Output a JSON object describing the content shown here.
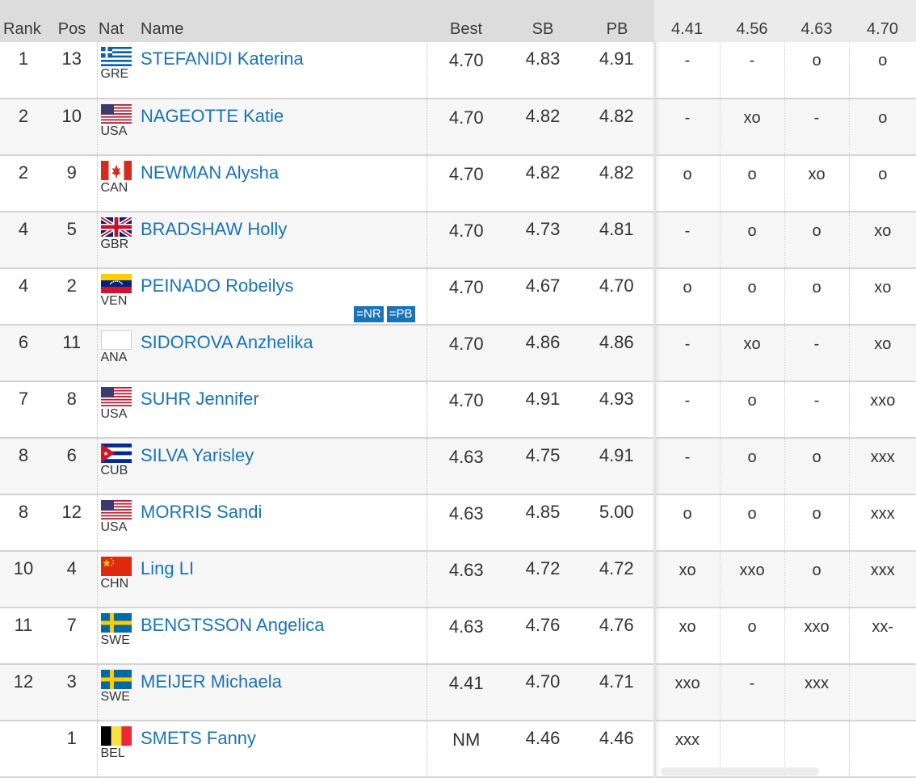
{
  "headers": {
    "rank": "Rank",
    "pos": "Pos",
    "nat": "Nat",
    "name": "Name",
    "best": "Best",
    "sb": "SB",
    "pb": "PB",
    "heights": [
      "4.41",
      "4.56",
      "4.63",
      "4.70"
    ]
  },
  "colors": {
    "link": "#1a73b8",
    "badge": "#1a73b8",
    "header_bg": "#dcdcdc",
    "height_header_bg": "#ebebeb",
    "row_alt_bg": "#f6f6f6"
  },
  "rows": [
    {
      "rank": "1",
      "pos": "13",
      "nat": "GRE",
      "flag": "flag-greece-icon",
      "name": "STEFANIDI Katerina",
      "best": "4.70",
      "sb": "4.83",
      "pb": "4.91",
      "attempts": [
        "-",
        "-",
        "o",
        "o"
      ],
      "badges": []
    },
    {
      "rank": "2",
      "pos": "10",
      "nat": "USA",
      "flag": "flag-usa-icon",
      "name": "NAGEOTTE Katie",
      "best": "4.70",
      "sb": "4.82",
      "pb": "4.82",
      "attempts": [
        "-",
        "xo",
        "-",
        "o"
      ],
      "badges": []
    },
    {
      "rank": "2",
      "pos": "9",
      "nat": "CAN",
      "flag": "flag-canada-icon",
      "name": "NEWMAN Alysha",
      "best": "4.70",
      "sb": "4.82",
      "pb": "4.82",
      "attempts": [
        "o",
        "o",
        "xo",
        "o"
      ],
      "badges": []
    },
    {
      "rank": "4",
      "pos": "5",
      "nat": "GBR",
      "flag": "flag-uk-icon",
      "name": "BRADSHAW Holly",
      "best": "4.70",
      "sb": "4.73",
      "pb": "4.81",
      "attempts": [
        "-",
        "o",
        "o",
        "xo"
      ],
      "badges": []
    },
    {
      "rank": "4",
      "pos": "2",
      "nat": "VEN",
      "flag": "flag-venezuela-icon",
      "name": "PEINADO Robeilys",
      "best": "4.70",
      "sb": "4.67",
      "pb": "4.70",
      "attempts": [
        "o",
        "o",
        "o",
        "xo"
      ],
      "badges": [
        "=NR",
        "=PB"
      ]
    },
    {
      "rank": "6",
      "pos": "11",
      "nat": "ANA",
      "flag": "flag-blank-icon",
      "name": "SIDOROVA Anzhelika",
      "best": "4.70",
      "sb": "4.86",
      "pb": "4.86",
      "attempts": [
        "-",
        "xo",
        "-",
        "xo"
      ],
      "badges": []
    },
    {
      "rank": "7",
      "pos": "8",
      "nat": "USA",
      "flag": "flag-usa-icon",
      "name": "SUHR Jennifer",
      "best": "4.70",
      "sb": "4.91",
      "pb": "4.93",
      "attempts": [
        "-",
        "o",
        "-",
        "xxo"
      ],
      "badges": []
    },
    {
      "rank": "8",
      "pos": "6",
      "nat": "CUB",
      "flag": "flag-cuba-icon",
      "name": "SILVA Yarisley",
      "best": "4.63",
      "sb": "4.75",
      "pb": "4.91",
      "attempts": [
        "-",
        "o",
        "o",
        "xxx"
      ],
      "badges": []
    },
    {
      "rank": "8",
      "pos": "12",
      "nat": "USA",
      "flag": "flag-usa-icon",
      "name": "MORRIS Sandi",
      "best": "4.63",
      "sb": "4.85",
      "pb": "5.00",
      "attempts": [
        "o",
        "o",
        "o",
        "xxx"
      ],
      "badges": []
    },
    {
      "rank": "10",
      "pos": "4",
      "nat": "CHN",
      "flag": "flag-china-icon",
      "name": "Ling LI",
      "best": "4.63",
      "sb": "4.72",
      "pb": "4.72",
      "attempts": [
        "xo",
        "xxo",
        "o",
        "xxx"
      ],
      "badges": []
    },
    {
      "rank": "11",
      "pos": "7",
      "nat": "SWE",
      "flag": "flag-sweden-icon",
      "name": "BENGTSSON Angelica",
      "best": "4.63",
      "sb": "4.76",
      "pb": "4.76",
      "attempts": [
        "xo",
        "o",
        "xxo",
        "xx-"
      ],
      "badges": []
    },
    {
      "rank": "12",
      "pos": "3",
      "nat": "SWE",
      "flag": "flag-sweden-icon",
      "name": "MEIJER Michaela",
      "best": "4.41",
      "sb": "4.70",
      "pb": "4.71",
      "attempts": [
        "xxo",
        "-",
        "xxx",
        ""
      ],
      "badges": []
    },
    {
      "rank": "",
      "pos": "1",
      "nat": "BEL",
      "flag": "flag-belgium-icon",
      "name": "SMETS Fanny",
      "best": "NM",
      "sb": "4.46",
      "pb": "4.46",
      "attempts": [
        "xxx",
        "",
        "",
        ""
      ],
      "badges": []
    }
  ]
}
